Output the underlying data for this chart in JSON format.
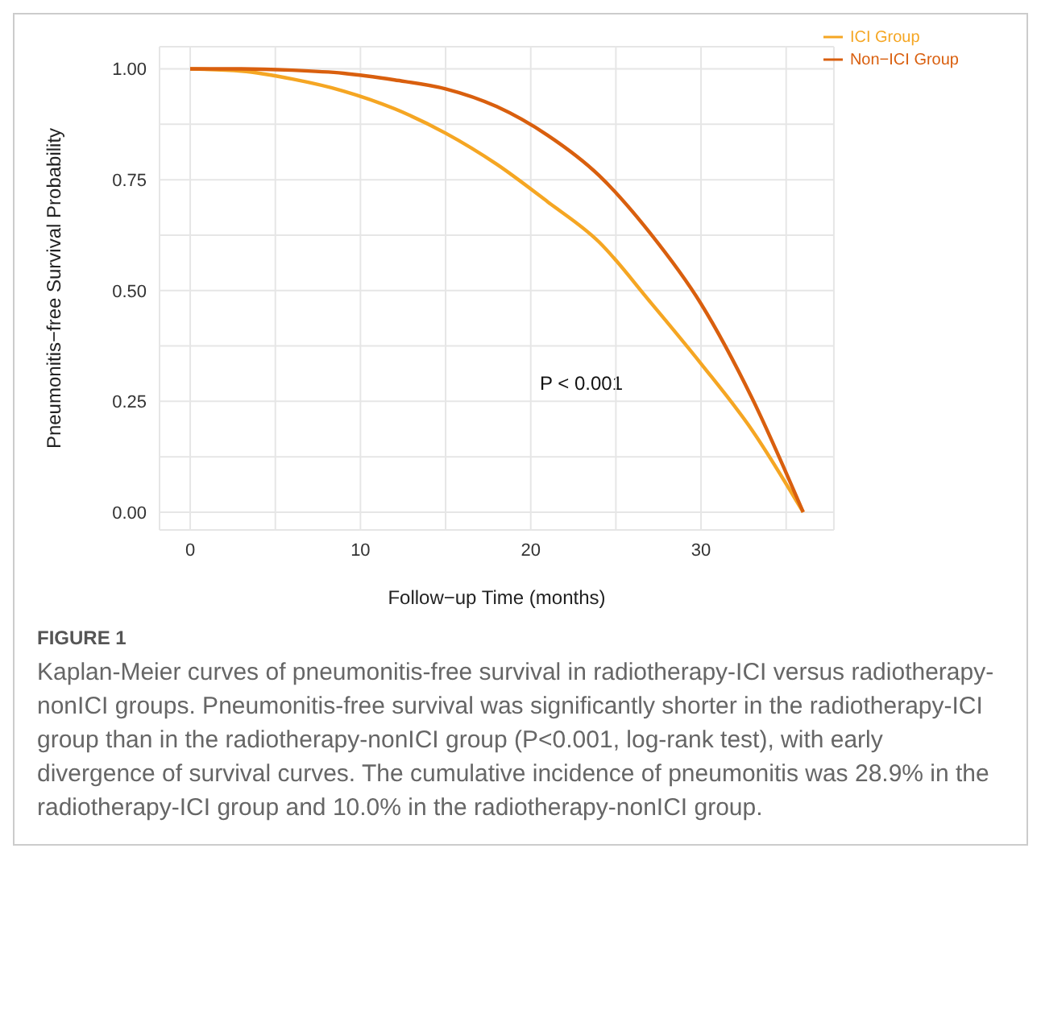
{
  "chart_data": {
    "type": "line",
    "xlabel": "Follow−up Time (months)",
    "ylabel": "Pneumonitis−free Survival Probability",
    "x": [
      0,
      3,
      6,
      9,
      12,
      15,
      18,
      21,
      24,
      27,
      30,
      33,
      36
    ],
    "series": [
      {
        "name": "ICI Group",
        "color": "#f5a623",
        "values": [
          1,
          0.995,
          0.977,
          0.95,
          0.91,
          0.855,
          0.785,
          0.7,
          0.61,
          0.475,
          0.335,
          0.185,
          0
        ]
      },
      {
        "name": "Non−ICI Group",
        "color": "#d95f0e",
        "values": [
          1,
          1,
          0.997,
          0.99,
          0.975,
          0.955,
          0.915,
          0.85,
          0.76,
          0.63,
          0.47,
          0.257,
          0
        ]
      }
    ],
    "xlim": [
      -1.8,
      37.8
    ],
    "ylim": [
      -0.04,
      1.05
    ],
    "xticks": [
      0,
      {
        "value": 5,
        "label": null
      },
      10,
      {
        "value": 15,
        "label": null
      },
      20,
      {
        "value": 25,
        "label": null
      },
      30,
      {
        "value": 35,
        "label": null
      }
    ],
    "yticks": [
      {
        "value": 0,
        "label": "0.00"
      },
      {
        "value": 0.125,
        "label": null
      },
      {
        "value": 0.25,
        "label": "0.25"
      },
      {
        "value": 0.375,
        "label": null
      },
      {
        "value": 0.5,
        "label": "0.50"
      },
      {
        "value": 0.625,
        "label": null
      },
      {
        "value": 0.75,
        "label": "0.75"
      },
      {
        "value": 0.875,
        "label": null
      },
      {
        "value": 1,
        "label": "1.00"
      }
    ],
    "grid": true,
    "legend": "top right",
    "marker": "none",
    "line_style": "solid",
    "annotations": [
      "P < 0.001",
      "FIGURE 1",
      "Kaplan-Meier curves of pneumonitis-free survival in radiotherapy-ICI versus radiotherapy-nonICI groups. Pneumonitis-free survival was significantly shorter in the radiotherapy-ICI group than in the radiotherapy-nonICI group (P<0.001, log-rank test), with early divergence of survival curves. The cumulative incidence of pneumonitis was 28.9% in the radiotherapy-ICI group and 10.0% in the radiotherapy-nonICI group."
    ]
  }
}
